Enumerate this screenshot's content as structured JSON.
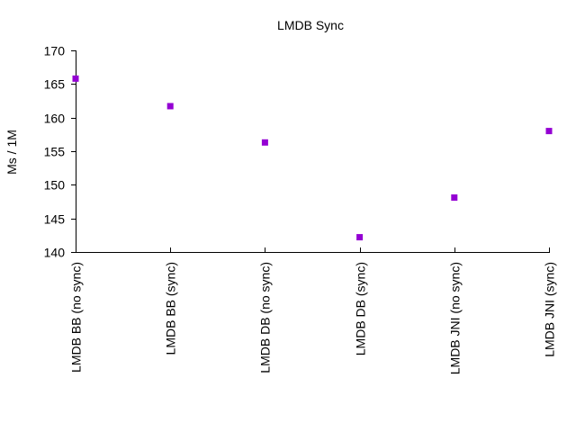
{
  "chart_data": {
    "type": "scatter",
    "title": "LMDB Sync",
    "xlabel": "",
    "ylabel": "Ms / 1M",
    "categories": [
      "LMDB BB (no sync)",
      "LMDB BB (sync)",
      "LMDB DB (no sync)",
      "LMDB DB (sync)",
      "LMDB JNI (no sync)",
      "LMDB JNI (sync)"
    ],
    "values": [
      165.8,
      161.7,
      156.3,
      142.2,
      148.1,
      158.0
    ],
    "yticks": [
      "140",
      "145",
      "150",
      "155",
      "160",
      "165",
      "170"
    ],
    "ylim": [
      140,
      170
    ],
    "grid": false,
    "legend": "none",
    "marker": "square",
    "color": "#9400d3"
  }
}
